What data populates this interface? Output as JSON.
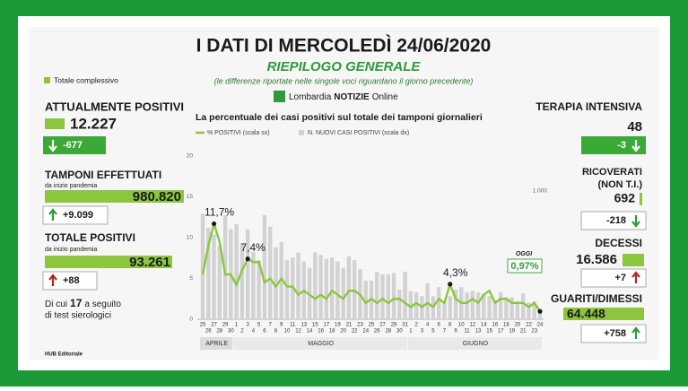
{
  "header": {
    "title": "I DATI DI MERCOLEDÌ 24/06/2020",
    "subtitle": "RIEPILOGO GENERALE",
    "note": "(le differenze riportate nelle singole voci riguardano il giorno precedente)",
    "logo": "Lombardia",
    "logo_bold": "NOTIZIE",
    "logo_suffix": "Online"
  },
  "legend_total": "Totale complessivo",
  "left": [
    {
      "label": "ATTUALMENTE POSITIVI",
      "value": "12.227",
      "change": "-677",
      "arrow": "down",
      "arrow_color": "#ffffff",
      "style": "filled"
    },
    {
      "label": "TAMPONI EFFETTUATI",
      "sublabel": "da inizio pandemia",
      "value": "980.820",
      "change": "+9.099",
      "arrow": "up",
      "arrow_color": "#2e9a3a",
      "style": "outline"
    },
    {
      "label": "TOTALE POSITIVI",
      "sublabel": "da inizio pandemia",
      "value": "93.261",
      "change": "+88",
      "arrow": "up",
      "arrow_color": "#b3261e",
      "style": "outline"
    }
  ],
  "footnote": {
    "pre": "Di cui",
    "number": "17",
    "post": "a seguito",
    "line2": "di test sierologici"
  },
  "right": [
    {
      "label": "TERAPIA INTENSIVA",
      "value": "48",
      "change": "-3",
      "arrow": "down",
      "arrow_color": "#ffffff",
      "style": "filled"
    },
    {
      "label": "RICOVERATI",
      "sublabel": "(NON T.I.)",
      "value": "692",
      "change": "-218",
      "arrow": "down",
      "arrow_color": "#2e9a3a",
      "style": "outline"
    },
    {
      "label": "DECESSI",
      "value": "16.586",
      "change": "+7",
      "arrow": "up",
      "arrow_color": "#b3261e",
      "style": "outline"
    },
    {
      "label": "GUARITI/DIMESSI",
      "value": "64.448",
      "change": "+758",
      "arrow": "up",
      "arrow_color": "#2e9a3a",
      "style": "outline"
    }
  ],
  "source": "HUB Editoriale",
  "chart_data": {
    "type": "combo",
    "title": "La percentuale dei casi positivi sul totale dei tamponi giornalieri",
    "categories": [
      "25",
      "26",
      "27",
      "28",
      "29",
      "30",
      "1",
      "2",
      "3",
      "4",
      "5",
      "6",
      "7",
      "8",
      "9",
      "10",
      "11",
      "12",
      "13",
      "14",
      "15",
      "16",
      "17",
      "18",
      "19",
      "20",
      "21",
      "22",
      "23",
      "24",
      "25",
      "26",
      "27",
      "28",
      "29",
      "30",
      "31",
      "1",
      "2",
      "3",
      "4",
      "5",
      "6",
      "7",
      "8",
      "9",
      "10",
      "11",
      "12",
      "13",
      "14",
      "15",
      "16",
      "17",
      "18",
      "19",
      "20",
      "21",
      "22",
      "23",
      "24"
    ],
    "months": [
      "APRILE",
      "MAGGIO",
      "GIUGNO"
    ],
    "series": [
      {
        "name": "% POSITIVI (scala sx)",
        "type": "line",
        "color": "#8cc63f",
        "values": [
          5.5,
          9,
          11.7,
          9.5,
          5.5,
          5.5,
          4.2,
          6,
          7.4,
          7,
          7,
          4.5,
          5,
          4,
          5,
          4,
          4,
          3,
          3.5,
          3,
          2.5,
          3,
          2.5,
          3.5,
          3,
          2.5,
          3.5,
          3.5,
          3,
          2,
          2.5,
          2,
          2.5,
          2,
          2.5,
          2.5,
          2,
          1.5,
          2,
          1.5,
          2,
          1.5,
          2.5,
          2,
          4.3,
          2.5,
          2,
          2,
          2.5,
          2,
          3,
          3.5,
          2,
          2.5,
          2.5,
          2,
          2,
          2,
          1.5,
          2,
          0.97
        ],
        "value_labels": [
          null,
          null,
          "11,7%",
          null,
          null,
          null,
          null,
          null,
          "7,4%",
          null,
          null,
          null,
          null,
          null,
          null,
          null,
          null,
          null,
          null,
          null,
          null,
          null,
          null,
          null,
          null,
          null,
          null,
          null,
          null,
          null,
          null,
          null,
          null,
          null,
          null,
          null,
          null,
          null,
          null,
          null,
          null,
          null,
          null,
          null,
          "4,3%",
          null,
          null,
          null,
          null,
          null,
          null,
          null,
          null,
          null,
          null,
          null,
          null,
          null,
          null,
          null,
          "0,97%"
        ]
      },
      {
        "name": "N. NUOVI CASI POSITIVI (scala dx)",
        "type": "bar",
        "axis": "y2",
        "color": "#d2d2d2",
        "values": [
          820,
          710,
          660,
          570,
          810,
          700,
          740,
          590,
          700,
          525,
          460,
          810,
          720,
          560,
          600,
          460,
          480,
          520,
          450,
          400,
          520,
          500,
          470,
          480,
          450,
          400,
          490,
          460,
          390,
          300,
          300,
          370,
          350,
          350,
          360,
          230,
          370,
          220,
          210,
          180,
          280,
          180,
          250,
          140,
          180,
          230,
          250,
          210,
          220,
          210,
          200,
          180,
          150,
          210,
          170,
          170,
          140,
          200,
          130,
          140,
          70
        ]
      }
    ],
    "annotation": "OGGI",
    "ylim": [
      0,
      20
    ],
    "yticks": [
      0,
      5,
      10,
      15,
      20
    ],
    "y2lim": [
      0,
      1270
    ],
    "y2ticks": [
      {
        "value": 1000,
        "label": "1.000"
      }
    ]
  }
}
